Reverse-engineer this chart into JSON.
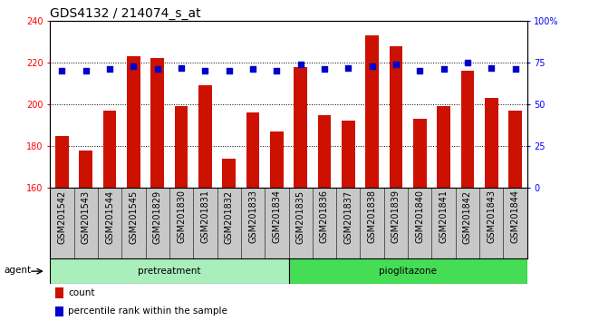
{
  "title": "GDS4132 / 214074_s_at",
  "samples": [
    "GSM201542",
    "GSM201543",
    "GSM201544",
    "GSM201545",
    "GSM201829",
    "GSM201830",
    "GSM201831",
    "GSM201832",
    "GSM201833",
    "GSM201834",
    "GSM201835",
    "GSM201836",
    "GSM201837",
    "GSM201838",
    "GSM201839",
    "GSM201840",
    "GSM201841",
    "GSM201842",
    "GSM201843",
    "GSM201844"
  ],
  "counts": [
    185,
    178,
    197,
    223,
    222,
    199,
    209,
    174,
    196,
    187,
    218,
    195,
    192,
    233,
    228,
    193,
    199,
    216,
    203,
    197
  ],
  "percentiles": [
    70,
    70,
    71,
    73,
    71,
    72,
    70,
    70,
    71,
    70,
    74,
    71,
    72,
    73,
    74,
    70,
    71,
    75,
    72,
    71
  ],
  "pretreatment_count": 10,
  "pioglitazone_count": 10,
  "ymin": 160,
  "ymax": 240,
  "yticks": [
    160,
    180,
    200,
    220,
    240
  ],
  "right_yticks": [
    0,
    25,
    50,
    75,
    100
  ],
  "bar_color": "#CC1100",
  "dot_color": "#0000CC",
  "agent_label": "agent",
  "legend_count_label": "count",
  "legend_pct_label": "percentile rank within the sample",
  "title_fontsize": 10,
  "tick_fontsize": 7,
  "label_fontsize": 7,
  "pretreatment_color": "#AAEEBB",
  "pioglitazone_color": "#44DD55"
}
